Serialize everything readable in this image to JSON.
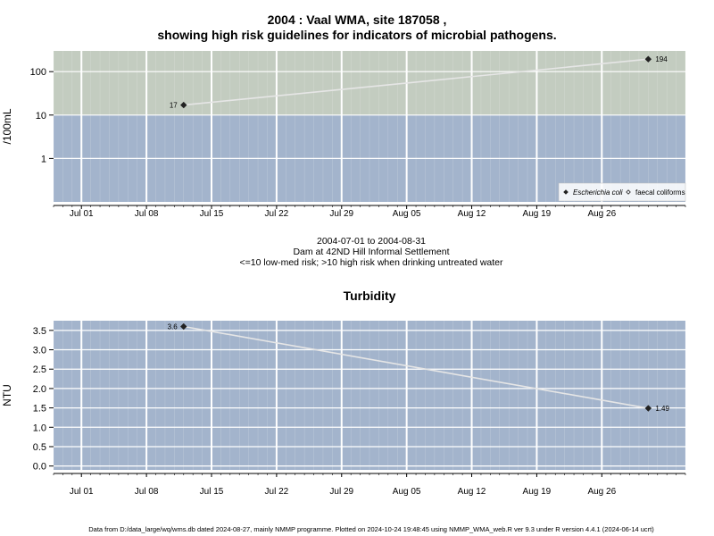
{
  "title_line1": "2004 : Vaal WMA, site 187058 ,",
  "title_line2": "showing high risk guidelines for indicators of microbial pathogens.",
  "mid_lines": [
    "2004-07-01 to 2004-08-31",
    "Dam at 42ND Hill Informal Settlement",
    "<=10 low-med risk; >10 high risk when drinking untreated water"
  ],
  "footer": "Data from D:/data_large/wq/wms.db dated 2024-08-27, mainly NMMP programme. Plotted on 2024-10-24 19:48:45 using NMMP_WMA_web.R ver 9.3 under R version 4.4.1 (2024-06-14 ucrt)",
  "colors": {
    "high_risk_band": "#c3ccc0",
    "low_risk_band": "#a3b4cc",
    "grid": "#ffffff",
    "line": "#e6e6e6",
    "point": "#222222"
  },
  "chart_data": [
    {
      "type": "line",
      "title": "",
      "ylabel": "/100mL",
      "y_scale": "log",
      "ylim": [
        0.1,
        300
      ],
      "y_ticks": [
        1,
        10,
        100
      ],
      "y_tick_labels": [
        "1",
        "10",
        "100"
      ],
      "x_ticks": [
        "2004-07-01",
        "2004-07-08",
        "2004-07-15",
        "2004-07-22",
        "2004-07-29",
        "2004-08-05",
        "2004-08-12",
        "2004-08-19",
        "2004-08-26"
      ],
      "x_tick_labels": [
        "Jul 01",
        "Jul 08",
        "Jul 15",
        "Jul 22",
        "Jul 29",
        "Aug 05",
        "Aug 12",
        "Aug 19",
        "Aug 26"
      ],
      "xlim": [
        "2004-06-28",
        "2004-09-04"
      ],
      "bands": [
        {
          "from": 10,
          "to": 300,
          "color": "#c3ccc0"
        },
        {
          "from": 0.1,
          "to": 10,
          "color": "#a3b4cc"
        }
      ],
      "series": [
        {
          "name": "Escherichia coli",
          "marker": "diamond-filled",
          "x": [
            "2004-07-12",
            "2004-08-31"
          ],
          "y": [
            17,
            194
          ],
          "labels": [
            "17",
            "194"
          ]
        },
        {
          "name": "faecal coliforms",
          "marker": "diamond-open",
          "x": [],
          "y": []
        }
      ],
      "legend": "bottom-right",
      "grid": true
    },
    {
      "type": "line",
      "title": "Turbidity",
      "ylabel": "NTU",
      "y_scale": "linear",
      "ylim": [
        -0.1,
        3.75
      ],
      "y_ticks": [
        0,
        0.5,
        1,
        1.5,
        2,
        2.5,
        3,
        3.5
      ],
      "y_tick_labels": [
        "0.0",
        "0.5",
        "1.0",
        "1.5",
        "2.0",
        "2.5",
        "3.0",
        "3.5"
      ],
      "x_ticks": [
        "2004-07-01",
        "2004-07-08",
        "2004-07-15",
        "2004-07-22",
        "2004-07-29",
        "2004-08-05",
        "2004-08-12",
        "2004-08-19",
        "2004-08-26"
      ],
      "x_tick_labels": [
        "Jul 01",
        "Jul 08",
        "Jul 15",
        "Jul 22",
        "Jul 29",
        "Aug 05",
        "Aug 12",
        "Aug 19",
        "Aug 26"
      ],
      "xlim": [
        "2004-06-28",
        "2004-09-04"
      ],
      "bands": [
        {
          "from": -0.1,
          "to": 3.75,
          "color": "#a3b4cc"
        }
      ],
      "series": [
        {
          "name": "",
          "marker": "diamond-filled",
          "x": [
            "2004-07-12",
            "2004-08-31"
          ],
          "y": [
            3.6,
            1.49
          ],
          "labels": [
            "3.6",
            "1.49"
          ]
        }
      ],
      "grid": true
    }
  ]
}
